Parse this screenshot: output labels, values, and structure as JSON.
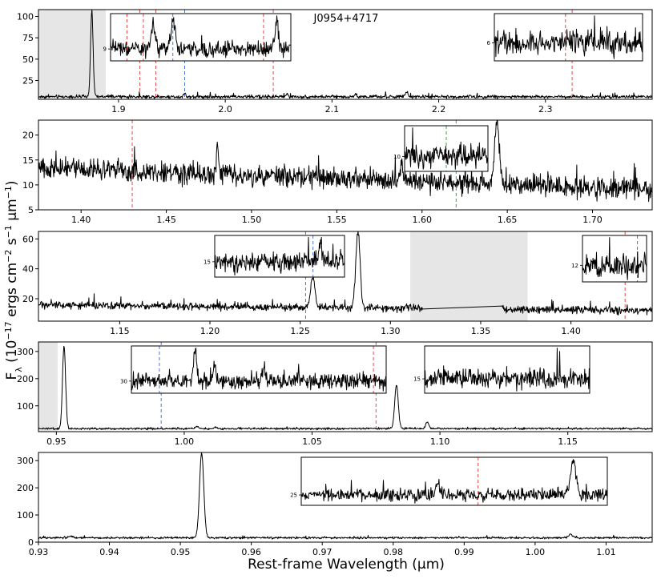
{
  "figure": {
    "title": "J0954+4717",
    "xlabel": "Rest-frame Wavelength (μm)",
    "ylabel_html": "F_λ (10^-17 ergs cm^-2 s^-1 μm^-1)"
  },
  "colors": {
    "line": "#000000",
    "red_marker": "#e34a4a",
    "blue_marker": "#4a78d6",
    "green_marker": "#3aa83a",
    "shade": "#e6e6e6"
  },
  "chart_data": [
    {
      "type": "line",
      "panel": 1,
      "xlim": [
        1.825,
        2.4
      ],
      "ylim": [
        3,
        108
      ],
      "xticks": [
        1.9,
        2.0,
        2.1,
        2.2,
        2.3
      ],
      "xtick_labels": [
        "1.9",
        "2.0",
        "2.1",
        "2.2",
        "2.3"
      ],
      "yticks": [
        25,
        50,
        75,
        100
      ],
      "ytick_labels": [
        "25",
        "50",
        "75",
        "100"
      ],
      "baseline": 6,
      "noise": 1.2,
      "peaks": [
        [
          1.875,
          100,
          0.0012
        ],
        [
          1.962,
          4,
          0.001
        ],
        [
          2.058,
          3,
          0.001
        ],
        [
          2.122,
          3,
          0.001
        ],
        [
          2.17,
          5,
          0.0012
        ]
      ],
      "shade": [
        [
          1.825,
          1.888
        ]
      ],
      "vlines": [
        {
          "x": 1.92,
          "color": "red"
        },
        {
          "x": 1.935,
          "color": "red"
        },
        {
          "x": 1.962,
          "color": "blue"
        },
        {
          "x": 2.045,
          "color": "red"
        },
        {
          "x": 2.325,
          "color": "red"
        }
      ],
      "insets": [
        {
          "xlim": [
            1.905,
            2.07
          ],
          "ytick_label": "9",
          "baseline": 6,
          "noise": 0.9,
          "peaks": [
            [
              1.944,
              4,
              0.002
            ],
            [
              1.962,
              5,
              0.002
            ],
            [
              2.057,
              5,
              0.0015
            ]
          ],
          "vlines": [
            {
              "x": 1.92,
              "color": "red"
            },
            {
              "x": 1.935,
              "color": "red"
            },
            {
              "x": 1.962,
              "color": "blue"
            },
            {
              "x": 2.045,
              "color": "red"
            }
          ]
        },
        {
          "xlim": [
            2.265,
            2.39
          ],
          "ytick_label": "6",
          "baseline": 4.5,
          "noise": 1.1,
          "peaks": [],
          "vlines": [
            {
              "x": 2.325,
              "color": "red"
            }
          ]
        }
      ]
    },
    {
      "type": "line",
      "panel": 2,
      "xlim": [
        1.375,
        1.735
      ],
      "ylim": [
        5,
        23
      ],
      "xticks": [
        1.4,
        1.45,
        1.5,
        1.55,
        1.6,
        1.65,
        1.7
      ],
      "xtick_labels": [
        "1.40",
        "1.45",
        "1.50",
        "1.55",
        "1.60",
        "1.65",
        "1.70"
      ],
      "yticks": [
        5,
        10,
        15,
        20
      ],
      "ytick_labels": [
        "5",
        "10",
        "15",
        "20"
      ],
      "slope": [
        13.5,
        9
      ],
      "noise": 1.3,
      "peaks": [
        [
          1.644,
          12,
          0.0015
        ],
        [
          1.48,
          5,
          0.0008
        ],
        [
          1.588,
          4,
          0.0008
        ]
      ],
      "shade": [],
      "vlines": [
        {
          "x": 1.43,
          "color": "red"
        },
        {
          "x": 1.62,
          "color": "green"
        }
      ],
      "insets": [
        {
          "xlim": [
            1.6,
            1.64
          ],
          "ytick_label": "10",
          "baseline": 10,
          "noise": 1.4,
          "peaks": [],
          "vlines": [
            {
              "x": 1.62,
              "color": "green"
            }
          ]
        }
      ]
    },
    {
      "type": "line",
      "panel": 3,
      "xlim": [
        1.105,
        1.445
      ],
      "ylim": [
        5,
        65
      ],
      "xticks": [
        1.15,
        1.2,
        1.25,
        1.3,
        1.35,
        1.4
      ],
      "xtick_labels": [
        "1.15",
        "1.20",
        "1.25",
        "1.30",
        "1.35",
        "1.40"
      ],
      "yticks": [
        20,
        40,
        60
      ],
      "ytick_labels": [
        "20",
        "40",
        "60"
      ],
      "slope": [
        16,
        12
      ],
      "noise": 1.5,
      "peaks": [
        [
          1.282,
          50,
          0.0012
        ],
        [
          1.257,
          20,
          0.0012
        ]
      ],
      "gap": [
        1.318,
        1.362
      ],
      "shade": [
        [
          1.311,
          1.376
        ]
      ],
      "vlines": [
        {
          "x": 1.253,
          "color": "blue"
        },
        {
          "x": 1.43,
          "color": "red"
        }
      ],
      "insets": [
        {
          "xlim": [
            1.2,
            1.27
          ],
          "ytick_label": "15",
          "baseline": 15,
          "noise": 1.8,
          "peaks": [
            [
              1.257,
              6,
              0.001
            ]
          ],
          "vlines": [
            {
              "x": 1.253,
              "color": "blue"
            }
          ]
        },
        {
          "xlim": [
            1.4,
            1.435
          ],
          "ytick_label": "12",
          "baseline": 12,
          "noise": 2,
          "peaks": [],
          "vlines": [
            {
              "x": 1.43,
              "color": "red"
            }
          ]
        }
      ]
    },
    {
      "type": "line",
      "panel": 4,
      "xlim": [
        0.943,
        1.183
      ],
      "ylim": [
        5,
        335
      ],
      "xticks": [
        0.95,
        1.0,
        1.05,
        1.1,
        1.15
      ],
      "xtick_labels": [
        "0.95",
        "1.00",
        "1.05",
        "1.10",
        "1.15"
      ],
      "yticks": [
        100,
        200,
        300
      ],
      "ytick_labels": [
        "100",
        "200",
        "300"
      ],
      "baseline": 16,
      "noise": 2.2,
      "peaks": [
        [
          0.953,
          305,
          0.0006
        ],
        [
          1.083,
          160,
          0.0007
        ],
        [
          1.095,
          25,
          0.0006
        ],
        [
          1.005,
          9,
          0.0006
        ],
        [
          1.0125,
          5,
          0.0006
        ]
      ],
      "shade": [
        [
          0.943,
          0.9505
        ]
      ],
      "vlines": [
        {
          "x": 0.991,
          "color": "blue"
        },
        {
          "x": 1.075,
          "color": "red"
        }
      ],
      "insets": [
        {
          "xlim": [
            0.98,
            1.08
          ],
          "ytick_label": "30",
          "baseline": 20,
          "noise": 1.8,
          "peaks": [
            [
              1.005,
              12,
              0.0006
            ],
            [
              1.0125,
              5,
              0.0006
            ],
            [
              1.032,
              4,
              0.0006
            ]
          ],
          "vlines": [
            {
              "x": 0.991,
              "color": "blue"
            },
            {
              "x": 1.075,
              "color": "red"
            }
          ]
        },
        {
          "xlim": [
            1.1,
            1.18
          ],
          "ytick_label": "15",
          "baseline": 14,
          "noise": 2.2,
          "peaks": [],
          "vlines": []
        }
      ]
    },
    {
      "type": "line",
      "panel": 5,
      "xlim": [
        0.93,
        1.0165
      ],
      "ylim": [
        0,
        330
      ],
      "xticks": [
        0.93,
        0.94,
        0.95,
        0.96,
        0.97,
        0.98,
        0.99,
        1.0,
        1.01
      ],
      "xtick_labels": [
        "0.93",
        "0.94",
        "0.95",
        "0.96",
        "0.97",
        "0.98",
        "0.99",
        "1.00",
        "1.01"
      ],
      "yticks": [
        0,
        100,
        200,
        300
      ],
      "ytick_labels": [
        "0",
        "100",
        "200",
        "300"
      ],
      "baseline": 16,
      "noise": 2.2,
      "peaks": [
        [
          0.953,
          310,
          0.0003
        ],
        [
          1.005,
          12,
          0.0003
        ],
        [
          0.9345,
          6,
          0.0003
        ]
      ],
      "shade": [],
      "vlines": [],
      "insets": [
        {
          "xlim": [
            0.965,
            1.01
          ],
          "ytick_label": "25",
          "baseline": 20,
          "noise": 1.5,
          "peaks": [
            [
              1.005,
              14,
              0.0004
            ],
            [
              0.985,
              4,
              0.0003
            ]
          ],
          "vlines": [
            {
              "x": 0.991,
              "color": "red"
            }
          ]
        }
      ]
    }
  ]
}
